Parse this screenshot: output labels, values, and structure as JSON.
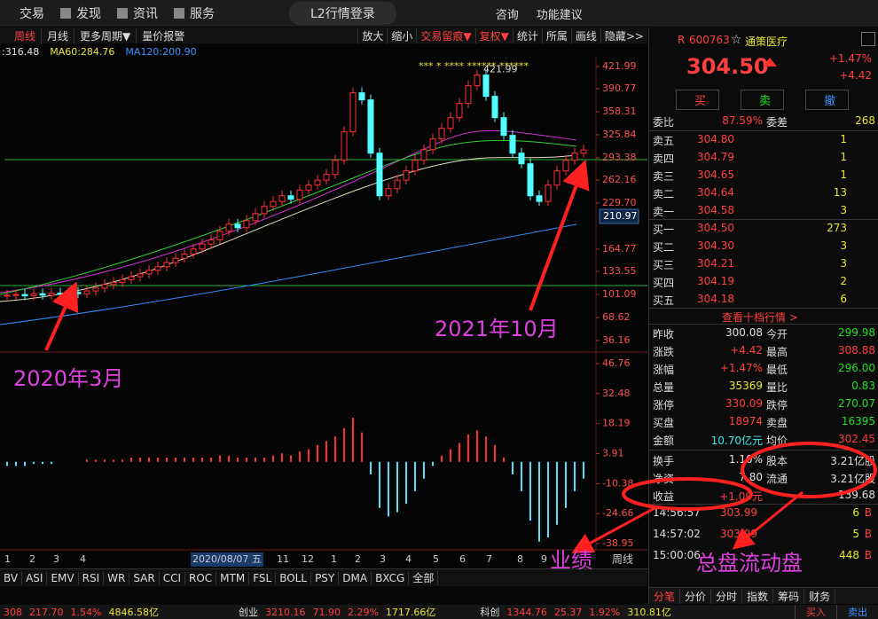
{
  "top_menu": {
    "items": [
      "交易",
      "发现",
      "资讯",
      "服务"
    ],
    "login": "L2行情登录",
    "tools": [
      "咨询",
      "功能建议"
    ]
  },
  "toolbar": {
    "left": [
      "周线",
      "月线",
      "更多周期▼",
      "量价报警"
    ],
    "right": [
      "放大",
      "缩小",
      "交易留痕▼",
      "复权▼",
      "统计",
      "所属",
      "画线",
      "隐藏>>"
    ]
  },
  "kline_chart": {
    "type": "candlestick",
    "ma_legend": [
      ":316.48",
      "MA60:284.76",
      "MA120:200.90"
    ],
    "stars": "***  *  ****  ******  ******",
    "peak_label": "421.99",
    "closes": [
      100,
      101,
      99,
      102,
      100,
      103,
      101,
      104,
      102,
      106,
      110,
      115,
      118,
      122,
      126,
      130,
      135,
      140,
      146,
      152,
      158,
      165,
      172,
      178,
      190,
      200,
      195,
      205,
      215,
      225,
      232,
      240,
      235,
      248,
      255,
      262,
      270,
      290,
      330,
      385,
      375,
      300,
      240,
      250,
      262,
      275,
      290,
      305,
      320,
      335,
      350,
      370,
      395,
      410,
      380,
      350,
      325,
      300,
      285,
      240,
      232,
      255,
      275,
      290,
      300,
      304.5
    ],
    "ylim": [
      36.16,
      421.99
    ],
    "yticks": [
      421.99,
      390.77,
      358.31,
      325.84,
      293.38,
      262.16,
      {
        "value": 229.7,
        "label": "229.70"
      },
      164.77,
      133.55,
      101.09,
      68.62,
      36.16
    ],
    "last_tag": 210.97,
    "categories": [
      "1",
      "2",
      "3",
      "4",
      "2020/08/07 五",
      "11",
      "12",
      "1",
      "2",
      "3",
      "4",
      "5",
      "6",
      "7",
      "8",
      "9"
    ],
    "period": "周线"
  },
  "macd_chart": {
    "type": "bar",
    "values": [
      -2,
      -2,
      -2,
      -1,
      -1,
      -1,
      0,
      0,
      0,
      1,
      1,
      1,
      1,
      1,
      2,
      2,
      2,
      2,
      2,
      2,
      2,
      2,
      2,
      2,
      3,
      3,
      2,
      2,
      2,
      2,
      3,
      4,
      3,
      5,
      6,
      8,
      10,
      12,
      16,
      21,
      14,
      -6,
      -22,
      -26,
      -24,
      -20,
      -14,
      -8,
      -2,
      3,
      6,
      9,
      13,
      15,
      12,
      8,
      2,
      -6,
      -14,
      -28,
      -38,
      -36,
      -30,
      -22,
      -14,
      -8
    ],
    "ylim": [
      -38.95,
      46.76
    ],
    "yticks": [
      46.76,
      32.48,
      18.19,
      3.91,
      -10.38,
      -24.66,
      -38.95
    ]
  },
  "indicator_tabs": [
    "BV",
    "ASI",
    "EMV",
    "RSI",
    "WR",
    "SAR",
    "CCI",
    "ROC",
    "MTM",
    "FSL",
    "BOLL",
    "PSY",
    "DMA",
    "BXCG",
    "全部"
  ],
  "annotations": [
    "2020年3月",
    "2021年10月",
    "业绩",
    "总盘流动盘"
  ],
  "quote": {
    "flag": "R",
    "code": "600763",
    "star": "☆",
    "name": "通策医疗",
    "price": "304.50",
    "pct": "+1.47%",
    "change": "+4.42",
    "buttons": [
      "买",
      "卖",
      "撤"
    ]
  },
  "weibi": [
    "委比",
    "87.59%",
    "委差",
    "268"
  ],
  "sell": [
    [
      "卖五",
      "304.80",
      "1"
    ],
    [
      "卖四",
      "304.79",
      "1"
    ],
    [
      "卖三",
      "304.65",
      "1"
    ],
    [
      "卖二",
      "304.64",
      "13"
    ],
    [
      "卖一",
      "304.58",
      "3"
    ]
  ],
  "buy": [
    [
      "买一",
      "304.50",
      "273"
    ],
    [
      "买二",
      "304.30",
      "3"
    ],
    [
      "买三",
      "304.21",
      "3"
    ],
    [
      "买四",
      "304.19",
      "2"
    ],
    [
      "买五",
      "304.18",
      "6"
    ]
  ],
  "more": "查看十档行情 >",
  "stats": [
    [
      "昨收",
      {
        "text": "300.08",
        "color": "#e0e0e0"
      },
      "今开",
      {
        "text": "299.98",
        "color": "#20e020"
      }
    ],
    [
      "涨跌",
      {
        "text": "+4.42",
        "color": "#ff4040"
      },
      "最高",
      {
        "text": "308.88",
        "color": "#ff4040"
      }
    ],
    [
      "涨幅",
      {
        "text": "+1.47%",
        "color": "#ff4040"
      },
      "最低",
      {
        "text": "296.00",
        "color": "#20e020"
      }
    ],
    [
      "总量",
      {
        "text": "35369",
        "color": "#e8e830"
      },
      "量比",
      {
        "text": "0.83",
        "color": "#20e020"
      }
    ],
    [
      "涨停",
      {
        "text": "330.09",
        "color": "#ff4040"
      },
      "跌停",
      {
        "text": "270.07",
        "color": "#20e020"
      }
    ],
    [
      "买盘",
      {
        "text": "18974",
        "color": "#ff4040"
      },
      "卖盘",
      {
        "text": "16395",
        "color": "#20e020"
      }
    ],
    [
      "金额",
      {
        "text": "10.70亿元",
        "color": "#3af0f0"
      },
      "均价",
      {
        "text": "302.45",
        "color": "#ff4040"
      }
    ],
    [
      "换手",
      {
        "text": "1.10%",
        "color": "#e0e0e0"
      },
      "股本",
      {
        "text": "3.21亿股",
        "color": "#e0e0e0"
      }
    ],
    [
      "净资",
      {
        "text": "7.80",
        "color": "#e0e0e0"
      },
      "流通",
      {
        "text": "3.21亿股",
        "color": "#e0e0e0"
      }
    ],
    [
      "收益",
      {
        "text": "+1.09元",
        "color": "#ff4040"
      },
      {
        "text": "139.68",
        "color": "#e0e0e0"
      }
    ]
  ],
  "ticks": [
    [
      "14:56:57",
      "303.99",
      "6",
      "B"
    ],
    [
      "14:57:02",
      "303.99",
      "5",
      "B"
    ],
    [
      "15:00:06",
      "448",
      "B"
    ]
  ],
  "tabs": [
    "分笔",
    "分价",
    "分时",
    "指数",
    "筹码",
    "财务"
  ],
  "status": {
    "groups": [
      [
        "308",
        "217.70",
        "1.54%",
        "4846.58亿"
      ],
      [
        "创业",
        "3210.16",
        "71.90",
        "2.29%",
        "1717.66亿"
      ],
      [
        "科创",
        "1344.76",
        "25.37",
        "1.92%",
        "310.81亿"
      ]
    ],
    "buttons": [
      "买入",
      "卖出"
    ]
  }
}
